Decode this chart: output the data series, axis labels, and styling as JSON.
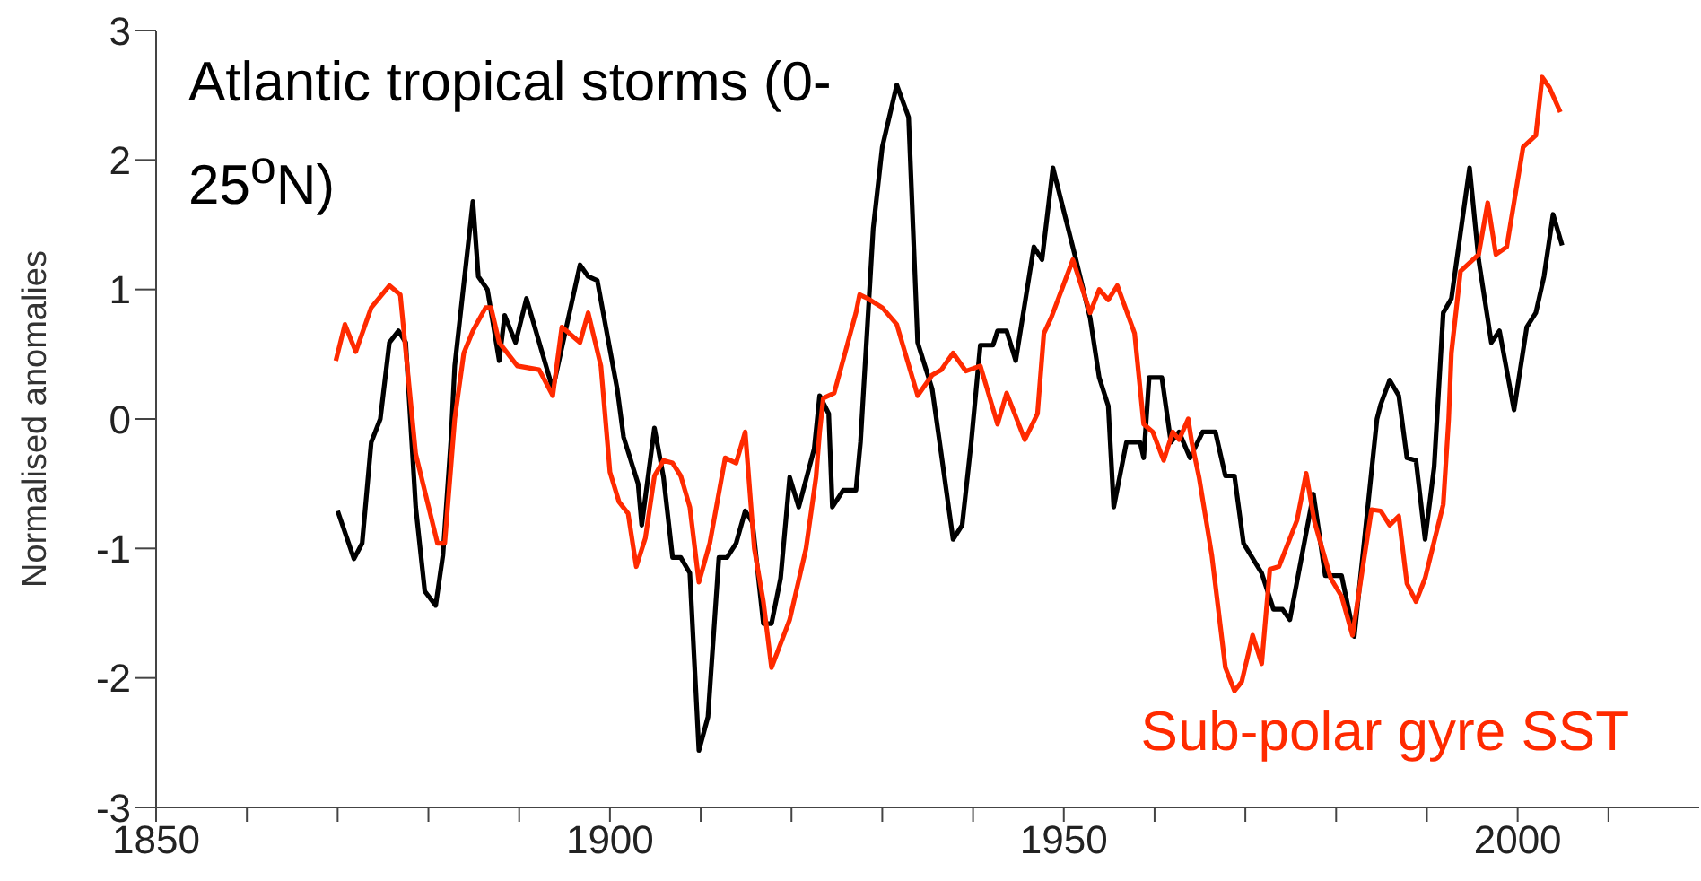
{
  "chart_data": {
    "type": "line",
    "ylabel": "Normalised anomalies",
    "xlim": [
      1850,
      2020
    ],
    "xticks": [
      1850,
      {
        "value": 1860,
        "label": null
      },
      {
        "value": 1870,
        "label": null
      },
      {
        "value": 1880,
        "label": null
      },
      {
        "value": 1890,
        "label": null
      },
      1900,
      {
        "value": 1910,
        "label": null
      },
      {
        "value": 1920,
        "label": null
      },
      {
        "value": 1930,
        "label": null
      },
      {
        "value": 1940,
        "label": null
      },
      1950,
      {
        "value": 1960,
        "label": null
      },
      {
        "value": 1970,
        "label": null
      },
      {
        "value": 1980,
        "label": null
      },
      {
        "value": 1990,
        "label": null
      },
      2000,
      {
        "value": 2010,
        "label": null
      }
    ],
    "ylim": [
      -3,
      3
    ],
    "yticks": [
      -3,
      -2,
      -1,
      0,
      1,
      2,
      3
    ],
    "marker": "none",
    "line_style": "solid",
    "series": [
      {
        "name": "Atlantic tropical storms (0-25$^{o}$N)",
        "color": "#000000",
        "x": [
          1870.0,
          1871.8,
          1872.7,
          1873.7,
          1874.7,
          1875.7,
          1876.7,
          1877.5,
          1878.6,
          1879.6,
          1880.8,
          1881.6,
          1882.5,
          1882.9,
          1884.9,
          1885.5,
          1886.5,
          1887.8,
          1888.4,
          1889.6,
          1890.8,
          1893.7,
          1896.7,
          1897.6,
          1898.6,
          1900.8,
          1901.5,
          1903.1,
          1903.5,
          1904.9,
          1905.9,
          1906.9,
          1907.8,
          1908.8,
          1909.8,
          1910.8,
          1912.0,
          1912.9,
          1913.9,
          1914.9,
          1915.7,
          1916.9,
          1917.8,
          1918.8,
          1919.8,
          1920.8,
          1922.5,
          1923.1,
          1924.1,
          1924.5,
          1925.7,
          1927.1,
          1927.6,
          1929.0,
          1930.0,
          1931.6,
          1932.9,
          1933.9,
          1935.5,
          1936.5,
          1937.8,
          1938.8,
          1939.8,
          1940.8,
          1942.2,
          1942.7,
          1943.7,
          1944.7,
          1946.7,
          1947.6,
          1948.8,
          1951.2,
          1952.9,
          1953.9,
          1954.9,
          1955.5,
          1956.9,
          1958.4,
          1958.8,
          1959.4,
          1960.8,
          1961.8,
          1962.7,
          1963.9,
          1965.3,
          1966.7,
          1967.8,
          1968.8,
          1969.8,
          1971.8,
          1973.1,
          1974.1,
          1974.9,
          1977.5,
          1978.8,
          1980.6,
          1982.0,
          1984.5,
          1984.9,
          1985.9,
          1986.9,
          1987.8,
          1988.8,
          1989.8,
          1990.8,
          1991.8,
          1992.7,
          1994.7,
          1995.7,
          1997.1,
          1998.0,
          1999.6,
          2001.0,
          2002.0,
          2002.9,
          2003.9,
          2004.9
        ],
        "values": [
          -0.71,
          -1.08,
          -0.96,
          -0.18,
          0,
          0.59,
          0.68,
          0.59,
          -0.68,
          -1.33,
          -1.44,
          -1.05,
          -0.14,
          0.41,
          1.68,
          1.1,
          1.0,
          0.45,
          0.8,
          0.59,
          0.93,
          0.23,
          1.19,
          1.1,
          1.07,
          0.23,
          -0.14,
          -0.5,
          -0.82,
          -0.07,
          -0.45,
          -1.07,
          -1.07,
          -1.19,
          -2.56,
          -2.3,
          -1.07,
          -1.07,
          -0.96,
          -0.71,
          -0.8,
          -1.58,
          -1.58,
          -1.23,
          -0.45,
          -0.68,
          -0.23,
          0.18,
          0.04,
          -0.68,
          -0.55,
          -0.55,
          -0.18,
          1.47,
          2.1,
          2.58,
          2.33,
          0.59,
          0.23,
          -0.27,
          -0.93,
          -0.82,
          -0.18,
          0.57,
          0.57,
          0.68,
          0.68,
          0.45,
          1.33,
          1.23,
          1.94,
          1.27,
          0.78,
          0.32,
          0.1,
          -0.68,
          -0.18,
          -0.18,
          -0.3,
          0.32,
          0.32,
          -0.18,
          -0.1,
          -0.3,
          -0.1,
          -0.1,
          -0.44,
          -0.44,
          -0.96,
          -1.19,
          -1.47,
          -1.47,
          -1.55,
          -0.58,
          -1.21,
          -1.21,
          -1.68,
          0,
          0.11,
          0.3,
          0.18,
          -0.3,
          -0.32,
          -0.93,
          -0.37,
          0.82,
          0.93,
          1.94,
          1.23,
          0.59,
          0.68,
          0.07,
          0.71,
          0.82,
          1.1,
          1.58,
          1.34
        ]
      },
      {
        "name": "Sub-polar gyre SST",
        "color": "#ff2a00",
        "x": [
          1869.8,
          1870.8,
          1872.0,
          1873.7,
          1875.7,
          1876.9,
          1878.6,
          1881.0,
          1881.8,
          1882.9,
          1883.9,
          1884.9,
          1886.3,
          1886.9,
          1887.8,
          1889.8,
          1892.2,
          1893.7,
          1894.7,
          1896.7,
          1897.6,
          1899.0,
          1900.0,
          1901.0,
          1902.0,
          1902.9,
          1903.9,
          1904.9,
          1905.9,
          1906.9,
          1907.8,
          1908.8,
          1909.8,
          1911.0,
          1912.7,
          1913.9,
          1914.9,
          1915.9,
          1916.9,
          1917.8,
          1919.8,
          1921.6,
          1922.7,
          1923.1,
          1923.5,
          1924.7,
          1927.1,
          1927.5,
          1928.4,
          1930.0,
          1931.6,
          1933.9,
          1935.5,
          1936.5,
          1937.8,
          1939.2,
          1940.8,
          1942.7,
          1943.7,
          1945.7,
          1947.1,
          1947.8,
          1948.6,
          1951.0,
          1952.9,
          1953.9,
          1954.9,
          1955.9,
          1957.8,
          1958.8,
          1959.8,
          1961.0,
          1962.0,
          1962.7,
          1963.7,
          1964.1,
          1964.9,
          1966.3,
          1967.8,
          1968.8,
          1969.6,
          1970.8,
          1971.8,
          1972.7,
          1973.7,
          1975.7,
          1976.7,
          1977.6,
          1979.4,
          1980.6,
          1981.8,
          1983.9,
          1984.9,
          1985.9,
          1986.9,
          1987.8,
          1988.8,
          1989.8,
          1991.8,
          1992.4,
          1992.7,
          1993.7,
          1995.7,
          1996.7,
          1997.6,
          1998.8,
          2000.6,
          2002.0,
          2002.7,
          2003.5,
          2004.7
        ],
        "values": [
          0.45,
          0.73,
          0.52,
          0.86,
          1.03,
          0.96,
          -0.27,
          -0.96,
          -0.96,
          0,
          0.51,
          0.68,
          0.86,
          0.86,
          0.59,
          0.41,
          0.38,
          0.18,
          0.71,
          0.59,
          0.82,
          0.41,
          -0.41,
          -0.64,
          -0.73,
          -1.14,
          -0.92,
          -0.44,
          -0.32,
          -0.34,
          -0.44,
          -0.68,
          -1.26,
          -0.96,
          -0.3,
          -0.34,
          -0.1,
          -1.0,
          -1.41,
          -1.92,
          -1.55,
          -1.0,
          -0.45,
          -0.1,
          0.16,
          0.2,
          0.82,
          0.96,
          0.93,
          0.86,
          0.73,
          0.18,
          0.34,
          0.38,
          0.51,
          0.37,
          0.41,
          -0.04,
          0.2,
          -0.16,
          0.04,
          0.66,
          0.78,
          1.23,
          0.82,
          1.0,
          0.92,
          1.03,
          0.66,
          -0.04,
          -0.1,
          -0.32,
          -0.1,
          -0.16,
          0,
          -0.18,
          -0.45,
          -1.05,
          -1.92,
          -2.1,
          -2.03,
          -1.67,
          -1.89,
          -1.16,
          -1.14,
          -0.78,
          -0.42,
          -0.79,
          -1.23,
          -1.37,
          -1.67,
          -0.7,
          -0.71,
          -0.82,
          -0.75,
          -1.27,
          -1.41,
          -1.23,
          -0.66,
          0,
          0.51,
          1.14,
          1.27,
          1.67,
          1.27,
          1.33,
          2.1,
          2.19,
          2.64,
          2.56,
          2.37
        ]
      }
    ]
  }
}
